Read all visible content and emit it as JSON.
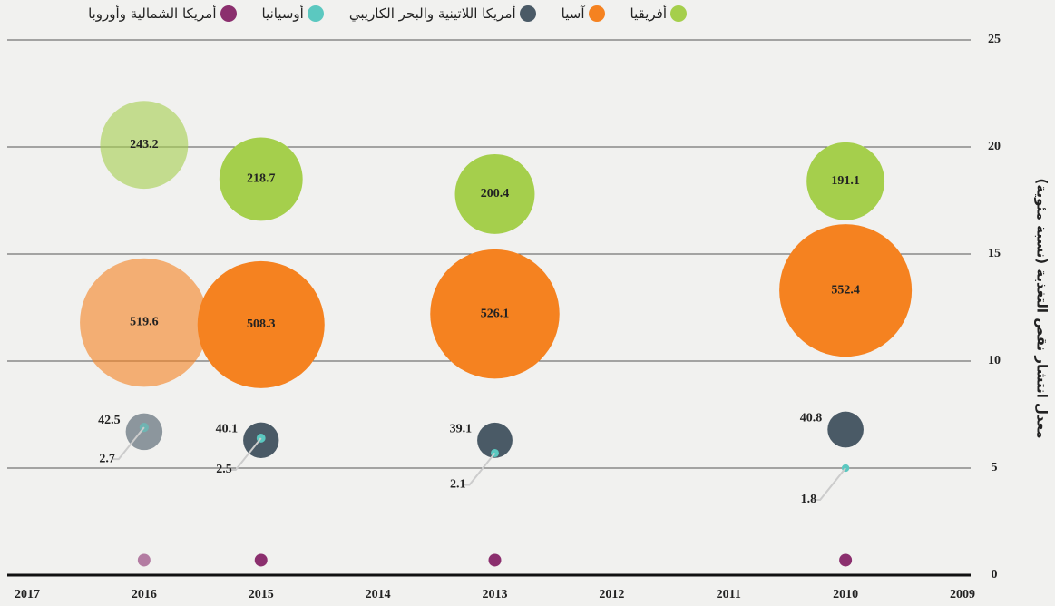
{
  "chart_data": {
    "type": "bubble",
    "y_label": "معدل انتشار نقص التغذية (نسبة مئوية)",
    "xlim": [
      2017,
      2009
    ],
    "xticks": [
      2017,
      2016,
      2015,
      2014,
      2013,
      2012,
      2011,
      2010,
      2009
    ],
    "ylim": [
      0,
      25
    ],
    "yticks": [
      0,
      5,
      10,
      15,
      20,
      25
    ],
    "grid": true,
    "faded_x": [
      2016
    ],
    "series": [
      {
        "name": "أفريقيا",
        "color": "#a5cf4c",
        "x": [
          2016,
          2015,
          2013,
          2010
        ],
        "values": [
          20.1,
          18.5,
          17.8,
          18.4
        ],
        "sizes": [
          243.2,
          218.7,
          200.4,
          191.1
        ]
      },
      {
        "name": "آسيا",
        "color": "#f58220",
        "x": [
          2016,
          2015,
          2013,
          2010
        ],
        "values": [
          11.8,
          11.7,
          12.2,
          13.3
        ],
        "sizes": [
          519.6,
          508.3,
          526.1,
          552.4
        ]
      },
      {
        "name": "أمريكا اللاتينية والبحر الكاريبي",
        "color": "#4a5a66",
        "x": [
          2016,
          2015,
          2013,
          2010
        ],
        "values": [
          6.7,
          6.3,
          6.3,
          6.8
        ],
        "sizes": [
          42.5,
          40.1,
          39.1,
          40.8
        ]
      },
      {
        "name": "أوسيانيا",
        "color": "#5bc8c0",
        "x": [
          2016,
          2015,
          2013,
          2010
        ],
        "values": [
          6.9,
          6.4,
          5.7,
          5.0
        ],
        "sizes": [
          2.7,
          2.5,
          2.1,
          1.8
        ]
      },
      {
        "name": "أمريكا الشمالية وأوروبا",
        "color": "#8b2f6e",
        "x": [
          2016,
          2015,
          2013,
          2010
        ],
        "values": [
          0.7,
          0.7,
          0.7,
          0.7
        ]
      }
    ]
  }
}
